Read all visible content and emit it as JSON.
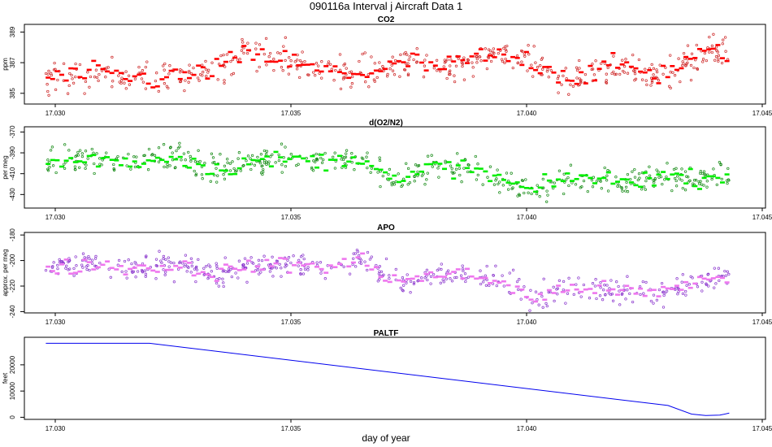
{
  "page_title": "090116a   Interval j Aircraft Data 1",
  "chart_data": [
    {
      "type": "scatter",
      "title": "CO2",
      "ylabel": "ppm",
      "xlabel": "",
      "xlim": [
        17.0295,
        17.0455
      ],
      "ylim": [
        384.3,
        389.5
      ],
      "yticks": [
        385,
        387,
        389
      ],
      "xticks": [
        "17.030",
        "17.035",
        "17.040",
        "17.045"
      ],
      "xtick_values": [
        17.03,
        17.035,
        17.04,
        17.045
      ],
      "x_start": 17.0298,
      "x_end": 17.0443,
      "raw_color": "#cc2222",
      "avg_color": "#ff0000",
      "series": [
        {
          "name": "raw",
          "style": "open-circles"
        },
        {
          "name": "averaged",
          "style": "dashes"
        }
      ],
      "trend": [
        {
          "x": 17.0298,
          "y": 386.0
        },
        {
          "x": 17.031,
          "y": 386.3
        },
        {
          "x": 17.032,
          "y": 385.9
        },
        {
          "x": 17.033,
          "y": 386.2
        },
        {
          "x": 17.034,
          "y": 387.4
        },
        {
          "x": 17.0348,
          "y": 387.3
        },
        {
          "x": 17.0355,
          "y": 386.5
        },
        {
          "x": 17.0363,
          "y": 386.3
        },
        {
          "x": 17.037,
          "y": 386.5
        },
        {
          "x": 17.0375,
          "y": 387.1
        },
        {
          "x": 17.0382,
          "y": 386.6
        },
        {
          "x": 17.039,
          "y": 387.4
        },
        {
          "x": 17.04,
          "y": 387.2
        },
        {
          "x": 17.041,
          "y": 386.0
        },
        {
          "x": 17.042,
          "y": 386.9
        },
        {
          "x": 17.0428,
          "y": 386.2
        },
        {
          "x": 17.0436,
          "y": 387.4
        },
        {
          "x": 17.0443,
          "y": 387.8
        }
      ],
      "noise": 0.9,
      "avg_noise": 0.35
    },
    {
      "type": "scatter",
      "title": "d(O2/N2)",
      "ylabel": "per meg",
      "xlabel": "",
      "xlim": [
        17.0295,
        17.0455
      ],
      "ylim": [
        -443,
        -365
      ],
      "yticks": [
        -370,
        -390,
        -410,
        -430
      ],
      "ytick_labels": [
        "-370",
        "-390",
        "-410",
        "-430"
      ],
      "xticks": [
        "17.030",
        "17.035",
        "17.040",
        "17.045"
      ],
      "xtick_values": [
        17.03,
        17.035,
        17.04,
        17.045
      ],
      "x_start": 17.0298,
      "x_end": 17.0443,
      "raw_color": "#118811",
      "avg_color": "#00ee00",
      "series": [
        {
          "name": "raw",
          "style": "open-circles"
        },
        {
          "name": "averaged",
          "style": "dashes"
        }
      ],
      "trend": [
        {
          "x": 17.0298,
          "y": -400
        },
        {
          "x": 17.0308,
          "y": -396
        },
        {
          "x": 17.0318,
          "y": -399
        },
        {
          "x": 17.0326,
          "y": -393
        },
        {
          "x": 17.0334,
          "y": -407
        },
        {
          "x": 17.0342,
          "y": -398
        },
        {
          "x": 17.035,
          "y": -396
        },
        {
          "x": 17.036,
          "y": -399
        },
        {
          "x": 17.0365,
          "y": -392
        },
        {
          "x": 17.0369,
          "y": -407
        },
        {
          "x": 17.0373,
          "y": -420
        },
        {
          "x": 17.038,
          "y": -403
        },
        {
          "x": 17.0388,
          "y": -405
        },
        {
          "x": 17.0396,
          "y": -418
        },
        {
          "x": 17.0401,
          "y": -427
        },
        {
          "x": 17.041,
          "y": -412
        },
        {
          "x": 17.042,
          "y": -418
        },
        {
          "x": 17.0428,
          "y": -412
        },
        {
          "x": 17.0436,
          "y": -415
        },
        {
          "x": 17.0443,
          "y": -410
        }
      ],
      "noise": 11,
      "avg_noise": 4
    },
    {
      "type": "scatter",
      "title": "APO",
      "ylabel": "approx. per meg",
      "xlabel": "",
      "xlim": [
        17.0295,
        17.0455
      ],
      "ylim": [
        -241,
        -178
      ],
      "yticks": [
        -180,
        -200,
        -220,
        -240
      ],
      "ytick_labels": [
        "-180",
        "-200",
        "-220",
        "-240"
      ],
      "xticks": [
        "17.030",
        "17.035",
        "17.040",
        "17.045"
      ],
      "xtick_values": [
        17.03,
        17.035,
        17.04,
        17.045
      ],
      "x_start": 17.0298,
      "x_end": 17.0443,
      "raw_color": "#8833cc",
      "avg_color": "#ee77ee",
      "series": [
        {
          "name": "raw",
          "style": "open-circles"
        },
        {
          "name": "averaged",
          "style": "dashes"
        }
      ],
      "trend": [
        {
          "x": 17.0298,
          "y": -207
        },
        {
          "x": 17.0308,
          "y": -203
        },
        {
          "x": 17.0318,
          "y": -206
        },
        {
          "x": 17.0326,
          "y": -204
        },
        {
          "x": 17.0334,
          "y": -210
        },
        {
          "x": 17.0342,
          "y": -204
        },
        {
          "x": 17.035,
          "y": -203
        },
        {
          "x": 17.036,
          "y": -205
        },
        {
          "x": 17.0365,
          "y": -199
        },
        {
          "x": 17.037,
          "y": -212
        },
        {
          "x": 17.0375,
          "y": -216
        },
        {
          "x": 17.0382,
          "y": -210
        },
        {
          "x": 17.039,
          "y": -213
        },
        {
          "x": 17.0396,
          "y": -218
        },
        {
          "x": 17.0401,
          "y": -231
        },
        {
          "x": 17.041,
          "y": -220
        },
        {
          "x": 17.042,
          "y": -224
        },
        {
          "x": 17.0428,
          "y": -226
        },
        {
          "x": 17.0436,
          "y": -216
        },
        {
          "x": 17.0443,
          "y": -213
        }
      ],
      "noise": 8,
      "avg_noise": 3
    },
    {
      "type": "line",
      "title": "PALTF",
      "ylabel": "feet",
      "xlabel": "day of year",
      "xlim": [
        17.0295,
        17.0455
      ],
      "ylim": [
        -800,
        30500
      ],
      "yticks": [
        0,
        10000,
        20000
      ],
      "ytick_labels": [
        "0",
        "10000",
        "20000"
      ],
      "xticks": [
        "17.030",
        "17.035",
        "17.040",
        "17.045"
      ],
      "xtick_values": [
        17.03,
        17.035,
        17.04,
        17.045
      ],
      "line_color": "#0000ee",
      "points": [
        {
          "x": 17.0298,
          "y": 28200
        },
        {
          "x": 17.032,
          "y": 28200
        },
        {
          "x": 17.043,
          "y": 4500
        },
        {
          "x": 17.0435,
          "y": 1200
        },
        {
          "x": 17.0438,
          "y": 700
        },
        {
          "x": 17.0441,
          "y": 800
        },
        {
          "x": 17.0443,
          "y": 1600
        }
      ]
    }
  ]
}
